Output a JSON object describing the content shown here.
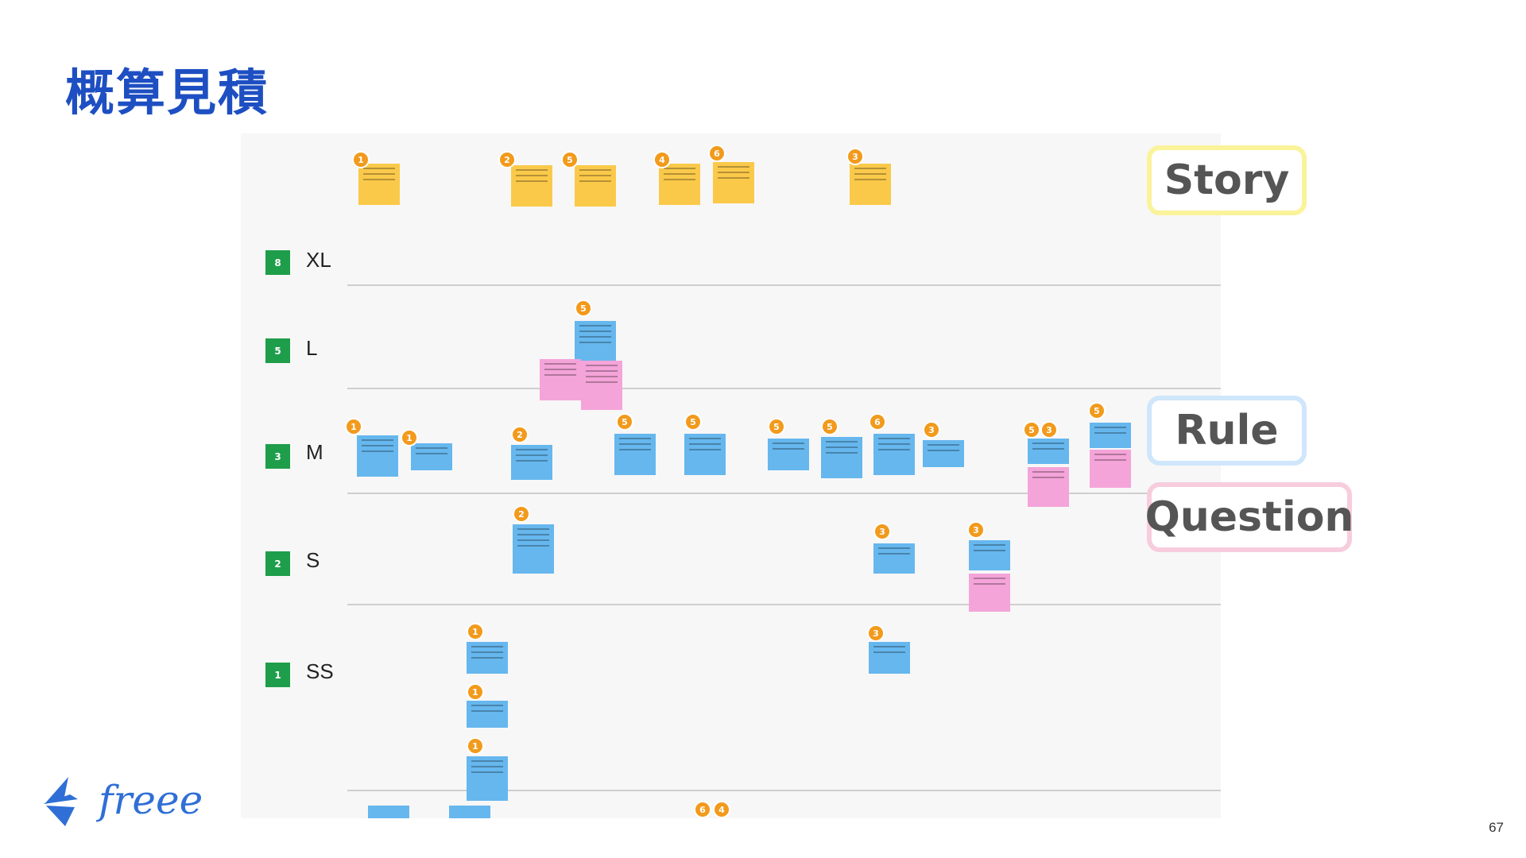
{
  "slide": {
    "title": "概算見積",
    "page_number": "67"
  },
  "legend": {
    "story": "Story",
    "rule": "Rule",
    "question": "Question"
  },
  "sizes": [
    {
      "points": "8",
      "label": "XL"
    },
    {
      "points": "5",
      "label": "L"
    },
    {
      "points": "3",
      "label": "M"
    },
    {
      "points": "2",
      "label": "S"
    },
    {
      "points": "1",
      "label": "SS"
    }
  ],
  "logo": {
    "text": "freee"
  },
  "colors": {
    "title": "#1e4fc2",
    "story_yellow": "#fbc94a",
    "rule_blue": "#66b7ee",
    "question_pink": "#f4a4d8",
    "size_badge_green": "#1e9e4a",
    "estimate_dot_orange": "#f29a1c"
  },
  "estimates": {
    "stories": [
      "1",
      "2",
      "5",
      "4",
      "6",
      "3"
    ],
    "L": [
      "5"
    ],
    "M": [
      "1",
      "1",
      "2",
      "5",
      "5",
      "5",
      "5",
      "6",
      "3",
      "5",
      "3",
      "5"
    ],
    "S": [
      "2",
      "3",
      "3"
    ],
    "SS": [
      "1",
      "1",
      "1",
      "3"
    ],
    "bottom": [
      "6",
      "4"
    ]
  }
}
